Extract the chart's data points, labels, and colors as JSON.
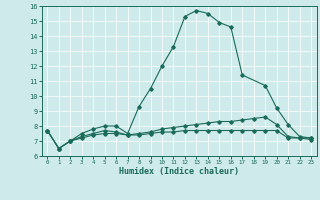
{
  "xlabel": "Humidex (Indice chaleur)",
  "xlim": [
    -0.5,
    23.5
  ],
  "ylim": [
    6,
    16
  ],
  "xticks": [
    0,
    1,
    2,
    3,
    4,
    5,
    6,
    7,
    8,
    9,
    10,
    11,
    12,
    13,
    14,
    15,
    16,
    17,
    18,
    19,
    20,
    21,
    22,
    23
  ],
  "yticks": [
    6,
    7,
    8,
    9,
    10,
    11,
    12,
    13,
    14,
    15,
    16
  ],
  "bg_color": "#ceeaea",
  "line_color": "#1a6b5a",
  "line1_x": [
    0,
    1,
    2,
    3,
    4,
    5,
    6,
    7,
    8,
    9,
    10,
    11,
    12,
    13,
    14,
    15,
    16,
    17,
    19,
    20,
    21,
    22,
    23
  ],
  "line1_y": [
    7.7,
    6.5,
    7.0,
    7.5,
    7.8,
    8.0,
    8.0,
    7.5,
    9.3,
    10.5,
    12.0,
    13.3,
    15.3,
    15.7,
    15.5,
    14.9,
    14.6,
    11.4,
    10.7,
    9.2,
    8.1,
    7.3,
    7.2
  ],
  "line2_x": [
    0,
    1,
    2,
    3,
    4,
    5,
    6,
    7,
    8,
    9,
    10,
    11,
    12,
    13,
    14,
    15,
    16,
    17,
    18,
    19,
    20,
    21,
    22,
    23
  ],
  "line2_y": [
    7.7,
    6.5,
    7.0,
    7.3,
    7.5,
    7.7,
    7.6,
    7.4,
    7.5,
    7.6,
    7.8,
    7.9,
    8.0,
    8.1,
    8.2,
    8.3,
    8.3,
    8.4,
    8.5,
    8.6,
    8.1,
    7.3,
    7.2,
    7.2
  ],
  "line3_x": [
    0,
    1,
    2,
    3,
    4,
    5,
    6,
    7,
    8,
    9,
    10,
    11,
    12,
    13,
    14,
    15,
    16,
    17,
    18,
    19,
    20,
    21,
    22,
    23
  ],
  "line3_y": [
    7.7,
    6.5,
    7.0,
    7.2,
    7.4,
    7.5,
    7.5,
    7.4,
    7.4,
    7.5,
    7.6,
    7.6,
    7.7,
    7.7,
    7.7,
    7.7,
    7.7,
    7.7,
    7.7,
    7.7,
    7.7,
    7.2,
    7.2,
    7.1
  ]
}
